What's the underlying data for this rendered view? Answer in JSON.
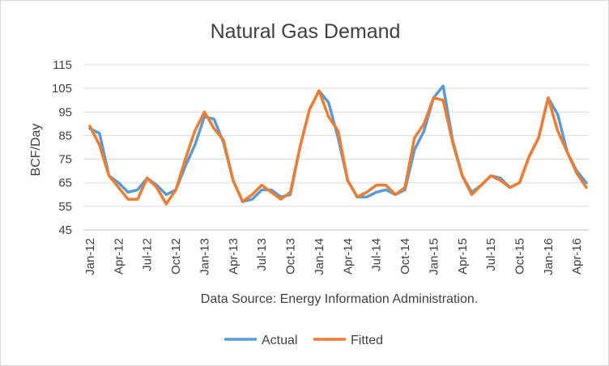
{
  "chart_data": {
    "type": "line",
    "title": "Natural Gas Demand",
    "xlabel": "",
    "ylabel": "BCF/Day",
    "source_note": "Data Source: Energy Information Administration.",
    "ylim": [
      45,
      115
    ],
    "yticks": [
      45,
      55,
      65,
      75,
      85,
      95,
      105,
      115
    ],
    "grid": "horizontal",
    "legend_position": "bottom",
    "x": [
      "Jan-12",
      "Feb-12",
      "Mar-12",
      "Apr-12",
      "May-12",
      "Jun-12",
      "Jul-12",
      "Aug-12",
      "Sep-12",
      "Oct-12",
      "Nov-12",
      "Dec-12",
      "Jan-13",
      "Feb-13",
      "Mar-13",
      "Apr-13",
      "May-13",
      "Jun-13",
      "Jul-13",
      "Aug-13",
      "Sep-13",
      "Oct-13",
      "Nov-13",
      "Dec-13",
      "Jan-14",
      "Feb-14",
      "Mar-14",
      "Apr-14",
      "May-14",
      "Jun-14",
      "Jul-14",
      "Aug-14",
      "Sep-14",
      "Oct-14",
      "Nov-14",
      "Dec-14",
      "Jan-15",
      "Feb-15",
      "Mar-15",
      "Apr-15",
      "May-15",
      "Jun-15",
      "Jul-15",
      "Aug-15",
      "Sep-15",
      "Oct-15",
      "Nov-15",
      "Dec-15",
      "Jan-16",
      "Feb-16",
      "Mar-16",
      "Apr-16",
      "May-16"
    ],
    "x_tick_labels": [
      "Jan-12",
      "Apr-12",
      "Jul-12",
      "Oct-12",
      "Jan-13",
      "Apr-13",
      "Jul-13",
      "Oct-13",
      "Jan-14",
      "Apr-14",
      "Jul-14",
      "Oct-14",
      "Jan-15",
      "Apr-15",
      "Jul-15",
      "Oct-15",
      "Jan-16",
      "Apr-16"
    ],
    "series": [
      {
        "name": "Actual",
        "color": "#5b9bd5",
        "values": [
          88,
          86,
          68,
          65,
          61,
          62,
          67,
          64,
          60,
          62,
          72,
          81,
          93,
          92,
          82,
          66,
          57,
          58,
          62,
          62,
          59,
          60,
          80,
          96,
          104,
          99,
          84,
          66,
          59,
          59,
          61,
          62,
          60,
          62,
          79,
          87,
          101,
          106,
          83,
          68,
          61,
          64,
          68,
          67,
          63,
          65,
          76,
          84,
          101,
          94,
          78,
          70,
          65
        ]
      },
      {
        "name": "Fitted",
        "color": "#ed7d31",
        "values": [
          89,
          81,
          68,
          63,
          58,
          58,
          67,
          63,
          56,
          62,
          75,
          87,
          95,
          88,
          83,
          66,
          57,
          60,
          64,
          61,
          58,
          61,
          80,
          96,
          104,
          93,
          87,
          66,
          59,
          61,
          64,
          64,
          60,
          63,
          84,
          90,
          101,
          100,
          82,
          68,
          60,
          64,
          68,
          66,
          63,
          65,
          76,
          84,
          101,
          87,
          78,
          69,
          63
        ]
      }
    ]
  }
}
